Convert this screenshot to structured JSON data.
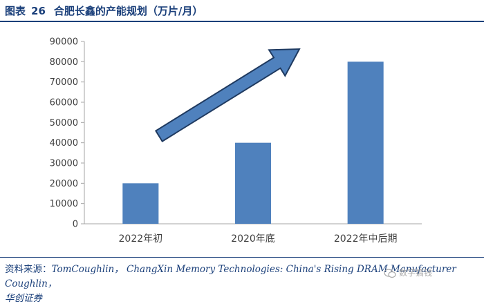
{
  "figure": {
    "label": "图表",
    "number": "26",
    "title": "合肥长鑫的产能规划（万片/月）"
  },
  "chart_data": {
    "type": "bar",
    "categories": [
      "2022年初",
      "2020年底",
      "2022年中后期"
    ],
    "values": [
      20000,
      40000,
      80000
    ],
    "ylim": [
      0,
      90000
    ],
    "yticks": [
      0,
      10000,
      20000,
      30000,
      40000,
      50000,
      60000,
      70000,
      80000,
      90000
    ],
    "bar_color": "#4f81bd",
    "arrow_color": "#4f81bd",
    "arrow_outline": "#1f3a60",
    "grid": false,
    "legend": "none"
  },
  "source": {
    "label": "资料来源：",
    "text": "TomCoughlin， ChangXin Memory Technologies: China's Rising DRAM Manufacturer Coughlin，",
    "publisher": "华创证券"
  },
  "watermark": {
    "icon": "wechat-icon",
    "text": "数字搞钱"
  }
}
